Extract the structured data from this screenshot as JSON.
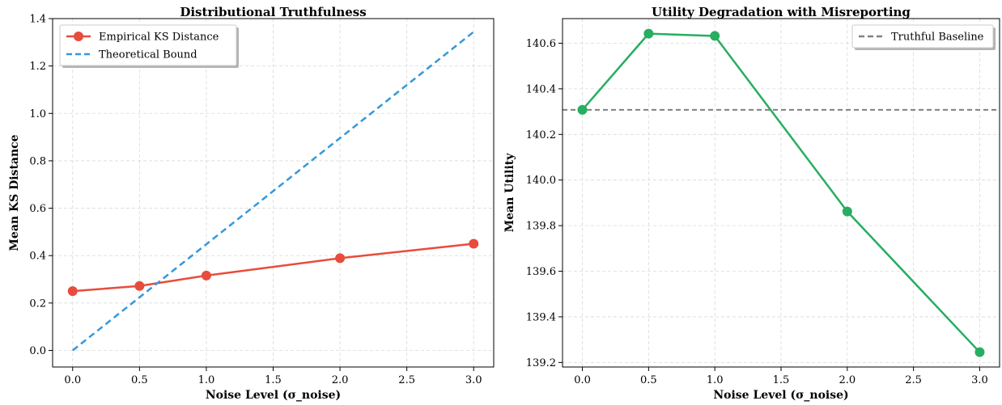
{
  "chart_data": [
    {
      "type": "line",
      "title": "Distributional Truthfulness",
      "xlabel": "Noise Level (σ_noise)",
      "ylabel": "Mean KS Distance",
      "xlim": [
        -0.15,
        3.15
      ],
      "ylim": [
        -0.07,
        1.4
      ],
      "xticks": [
        0.0,
        0.5,
        1.0,
        1.5,
        2.0,
        2.5,
        3.0
      ],
      "xtick_labels": [
        "0.0",
        "0.5",
        "1.0",
        "1.5",
        "2.0",
        "2.5",
        "3.0"
      ],
      "yticks": [
        0.0,
        0.2,
        0.4,
        0.6,
        0.8,
        1.0,
        1.2,
        1.4
      ],
      "ytick_labels": [
        "0.0",
        "0.2",
        "0.4",
        "0.6",
        "0.8",
        "1.0",
        "1.2",
        "1.4"
      ],
      "grid": true,
      "legend": "top-left",
      "series": [
        {
          "name": "Empirical KS Distance",
          "color": "#e74c3c",
          "style": "solid",
          "markers": true,
          "x": [
            0.0,
            0.5,
            1.0,
            2.0,
            3.0
          ],
          "y": [
            0.25,
            0.272,
            0.316,
            0.389,
            0.45
          ]
        },
        {
          "name": "Theoretical Bound",
          "color": "#3498db",
          "style": "dashed",
          "markers": false,
          "x": [
            0.0,
            3.0
          ],
          "y": [
            0.0,
            1.344
          ]
        }
      ]
    },
    {
      "type": "line",
      "title": "Utility Degradation with Misreporting",
      "xlabel": "Noise Level (σ_noise)",
      "ylabel": "Mean Utility",
      "xlim": [
        -0.15,
        3.15
      ],
      "ylim": [
        139.18,
        140.708
      ],
      "xticks": [
        0.0,
        0.5,
        1.0,
        1.5,
        2.0,
        2.5,
        3.0
      ],
      "xtick_labels": [
        "0.0",
        "0.5",
        "1.0",
        "1.5",
        "2.0",
        "2.5",
        "3.0"
      ],
      "yticks": [
        139.2,
        139.4,
        139.6,
        139.8,
        140.0,
        140.2,
        140.4,
        140.6
      ],
      "ytick_labels": [
        "139.2",
        "139.4",
        "139.6",
        "139.8",
        "140.0",
        "140.2",
        "140.4",
        "140.6"
      ],
      "grid": true,
      "legend": "top-right",
      "series": [
        {
          "name": "",
          "color": "#27ae60",
          "style": "solid",
          "markers": true,
          "x": [
            0.0,
            0.5,
            1.0,
            2.0,
            3.0
          ],
          "y": [
            140.308,
            140.642,
            140.632,
            139.862,
            139.245
          ]
        }
      ],
      "hlines": [
        {
          "name": "Truthful Baseline",
          "y": 140.308,
          "color": "#808080",
          "style": "dashed"
        }
      ]
    }
  ]
}
